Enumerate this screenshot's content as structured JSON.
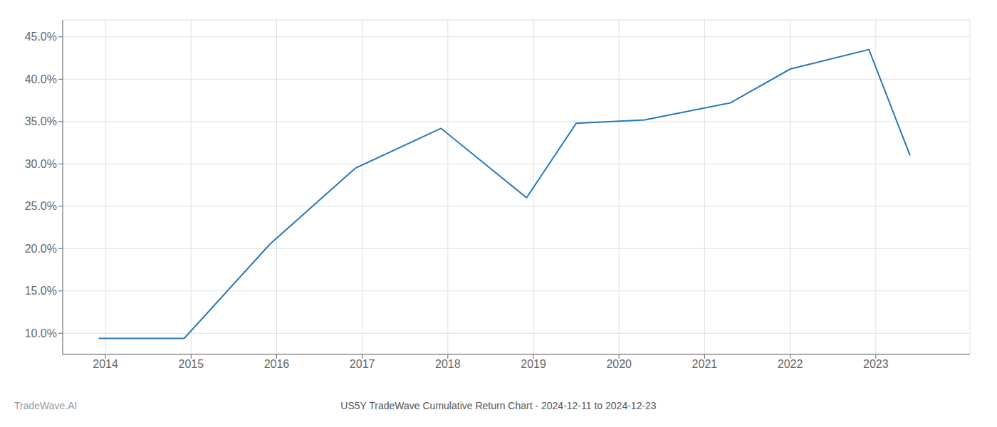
{
  "chart_data": {
    "type": "line",
    "title": "US5Y TradeWave Cumulative Return Chart - 2024-12-11 to 2024-12-23",
    "annotations": [
      "TradeWave.AI"
    ],
    "x": [
      2013.92,
      2014.92,
      2015.92,
      2016.92,
      2017.92,
      2018.92,
      2019.5,
      2020.3,
      2021.3,
      2022.0,
      2022.92,
      2023.4
    ],
    "values": [
      9.4,
      9.4,
      20.5,
      29.5,
      34.2,
      26.0,
      34.8,
      35.2,
      37.2,
      41.2,
      43.5,
      31.0
    ],
    "color": "#2878b8",
    "xlim": [
      2013.5,
      2024.1
    ],
    "ylim": [
      7.5,
      47.0
    ],
    "xticks": [
      2014,
      2015,
      2016,
      2017,
      2018,
      2019,
      2020,
      2021,
      2022,
      2023
    ],
    "yticks": [
      {
        "value": 10.0,
        "label": "10.0%"
      },
      {
        "value": 15.0,
        "label": "15.0%"
      },
      {
        "value": 20.0,
        "label": "20.0%"
      },
      {
        "value": 25.0,
        "label": "25.0%"
      },
      {
        "value": 30.0,
        "label": "30.0%"
      },
      {
        "value": 35.0,
        "label": "35.0%"
      },
      {
        "value": 40.0,
        "label": "40.0%"
      },
      {
        "value": 45.0,
        "label": "45.0%"
      }
    ],
    "grid": true
  }
}
